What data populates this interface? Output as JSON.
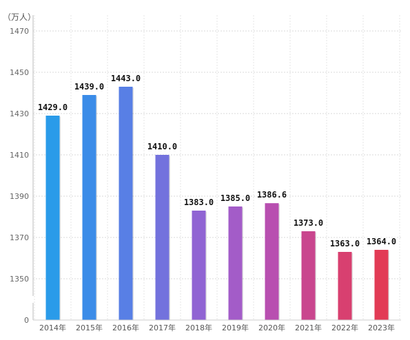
{
  "chart_data": {
    "type": "bar",
    "unit_label": "（万人）",
    "categories": [
      "2014年",
      "2015年",
      "2016年",
      "2017年",
      "2018年",
      "2019年",
      "2020年",
      "2021年",
      "2022年",
      "2023年"
    ],
    "values": [
      1429.0,
      1439.0,
      1443.0,
      1410.0,
      1383.0,
      1385.0,
      1386.6,
      1373.0,
      1363.0,
      1364.0
    ],
    "value_labels": [
      "1429.0",
      "1439.0",
      "1443.0",
      "1410.0",
      "1383.0",
      "1385.0",
      "1386.6",
      "1373.0",
      "1363.0",
      "1364.0"
    ],
    "yticks": [
      "1470",
      "1450",
      "1430",
      "1410",
      "1390",
      "1370",
      "1350",
      "0"
    ],
    "ylim": [
      1340,
      1475
    ],
    "axis_break": true,
    "grid": true,
    "colors": [
      "#2a9be9",
      "#3b8ce8",
      "#587fe5",
      "#7372dd",
      "#9064d3",
      "#a35cc8",
      "#b84fb0",
      "#c9468e",
      "#d84070",
      "#e23b55"
    ]
  }
}
